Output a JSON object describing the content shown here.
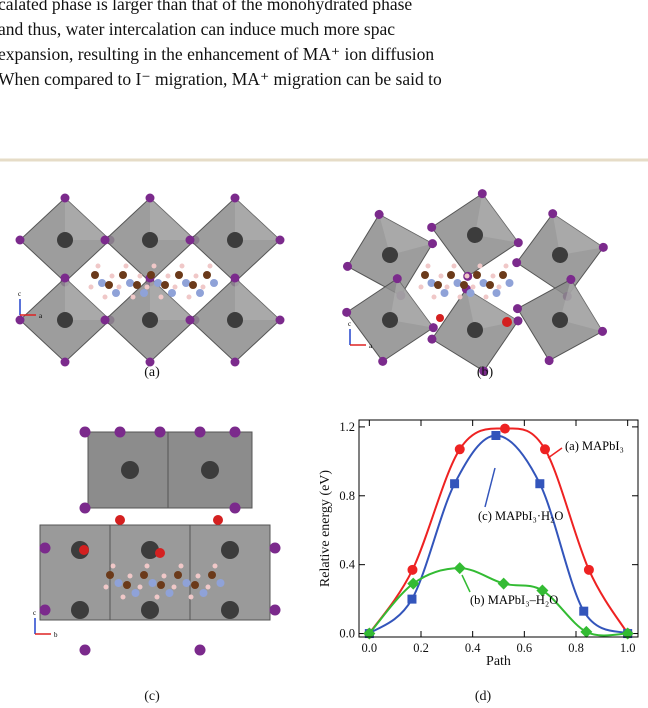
{
  "text_lines": [
    "calated phase is larger than that of the monohydrated phase",
    "and thus, water intercalation can induce much more spac",
    "expansion, resulting in the enhancement of MA⁺ ion diffusion",
    "When compared to I⁻ migration, MA⁺ migration can be said to"
  ],
  "panels": [
    {
      "label": "(a)",
      "axes": [
        "c",
        "a"
      ]
    },
    {
      "label": "(b)",
      "axes": [
        "c",
        "a"
      ]
    },
    {
      "label": "(c)",
      "axes": [
        "c",
        "b"
      ]
    },
    {
      "label": "(d)"
    }
  ],
  "chart_data": {
    "type": "line",
    "xlabel": "Path",
    "ylabel": "Relative energy (eV)",
    "xlim": [
      -0.04,
      1.04
    ],
    "ylim": [
      -0.02,
      1.24
    ],
    "xticks": [
      {
        "value": 0,
        "label": "0.0"
      },
      {
        "value": 0.2,
        "label": "0.2"
      },
      {
        "value": 0.4,
        "label": "0.4"
      },
      {
        "value": 0.6,
        "label": "0.6"
      },
      {
        "value": 0.8,
        "label": "0.8"
      },
      {
        "value": 1,
        "label": "1.0"
      }
    ],
    "yticks": [
      {
        "value": 0,
        "label": "0.0"
      },
      {
        "value": 0.4,
        "label": "0.4"
      },
      {
        "value": 0.8,
        "label": "0.8"
      },
      {
        "value": 1.2,
        "label": "1.2"
      }
    ],
    "series": [
      {
        "name": "(a) MAPbI₃",
        "color": "#ee2222",
        "marker": "circle",
        "x": [
          0,
          0.167,
          0.35,
          0.525,
          0.68,
          0.85,
          1.0
        ],
        "values": [
          0,
          0.37,
          1.07,
          1.19,
          1.07,
          0.37,
          0
        ]
      },
      {
        "name": "(c) MAPbI₃·H₂O",
        "color": "#3355bb",
        "marker": "square",
        "x": [
          0,
          0.165,
          0.33,
          0.49,
          0.66,
          0.83,
          1.0
        ],
        "values": [
          0,
          0.2,
          0.87,
          1.15,
          0.87,
          0.13,
          0
        ]
      },
      {
        "name": "(b) MAPbI₃–H₂O",
        "color": "#33bb33",
        "marker": "diamond",
        "x": [
          0,
          0.17,
          0.35,
          0.52,
          0.67,
          0.84,
          1.0
        ],
        "values": [
          0,
          0.29,
          0.38,
          0.29,
          0.25,
          0.01,
          0
        ]
      }
    ]
  }
}
